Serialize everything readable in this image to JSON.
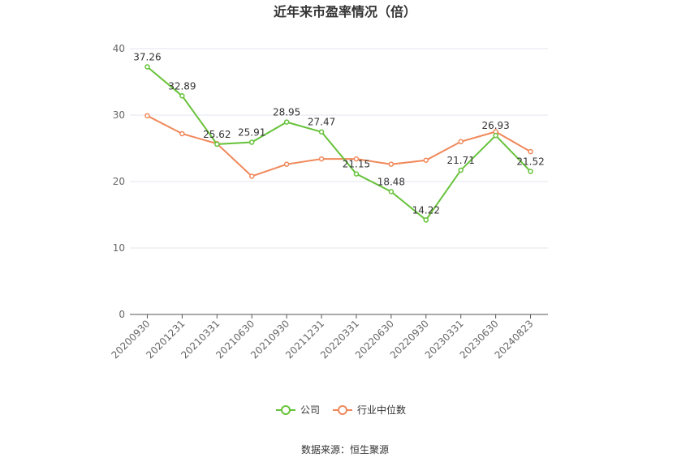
{
  "chart_data": {
    "type": "line",
    "title": "近年来市盈率情况（倍）",
    "categories": [
      "20200930",
      "20201231",
      "20210331",
      "20210630",
      "20210930",
      "20211231",
      "20220331",
      "20220630",
      "20220930",
      "20230331",
      "20230630",
      "20240823"
    ],
    "series": [
      {
        "name": "公司",
        "color": "#67c23a",
        "values": [
          37.26,
          32.89,
          25.62,
          25.91,
          28.95,
          27.47,
          21.15,
          18.48,
          14.22,
          21.71,
          26.93,
          21.52
        ],
        "show_labels": true
      },
      {
        "name": "行业中位数",
        "color": "#f0885a",
        "values": [
          29.9,
          27.2,
          25.7,
          20.8,
          22.6,
          23.4,
          23.4,
          22.6,
          23.2,
          26.0,
          27.5,
          24.5
        ],
        "show_labels": false
      }
    ],
    "ylim": [
      0,
      40
    ],
    "yticks": [
      0,
      10,
      20,
      30,
      40
    ],
    "grid": true,
    "legend_position": "bottom"
  },
  "source": "数据来源：恒生聚源"
}
